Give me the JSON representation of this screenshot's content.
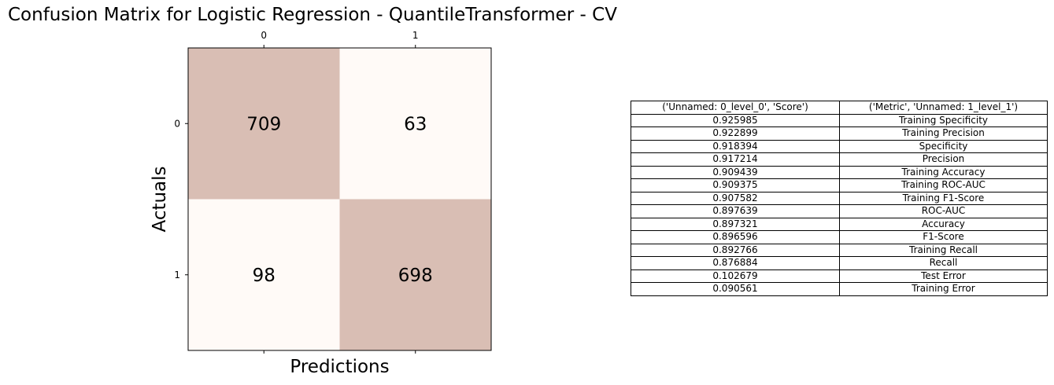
{
  "chart_data": [
    {
      "type": "heatmap",
      "title": "Confusion Matrix for Logistic Regression - QuantileTransformer - CV",
      "xlabel": "Predictions",
      "ylabel": "Actuals",
      "x_tick_labels": [
        "0",
        "1"
      ],
      "y_tick_labels": [
        "0",
        "1"
      ],
      "values": [
        [
          709,
          63
        ],
        [
          98,
          698
        ]
      ],
      "colors": {
        "high": "#d9beb4",
        "low": "#fffaf7"
      }
    },
    {
      "type": "table",
      "columns": [
        "('Unnamed: 0_level_0', 'Score')",
        "('Metric', 'Unnamed: 1_level_1')"
      ],
      "rows": [
        [
          "0.925985",
          "Training Specificity"
        ],
        [
          "0.922899",
          "Training Precision"
        ],
        [
          "0.918394",
          "Specificity"
        ],
        [
          "0.917214",
          "Precision"
        ],
        [
          "0.909439",
          "Training Accuracy"
        ],
        [
          "0.909375",
          "Training ROC-AUC"
        ],
        [
          "0.907582",
          "Training F1-Score"
        ],
        [
          "0.897639",
          "ROC-AUC"
        ],
        [
          "0.897321",
          "Accuracy"
        ],
        [
          "0.896596",
          "F1-Score"
        ],
        [
          "0.892766",
          "Training Recall"
        ],
        [
          "0.876884",
          "Recall"
        ],
        [
          "0.102679",
          "Test Error"
        ],
        [
          "0.090561",
          "Training Error"
        ]
      ]
    }
  ]
}
